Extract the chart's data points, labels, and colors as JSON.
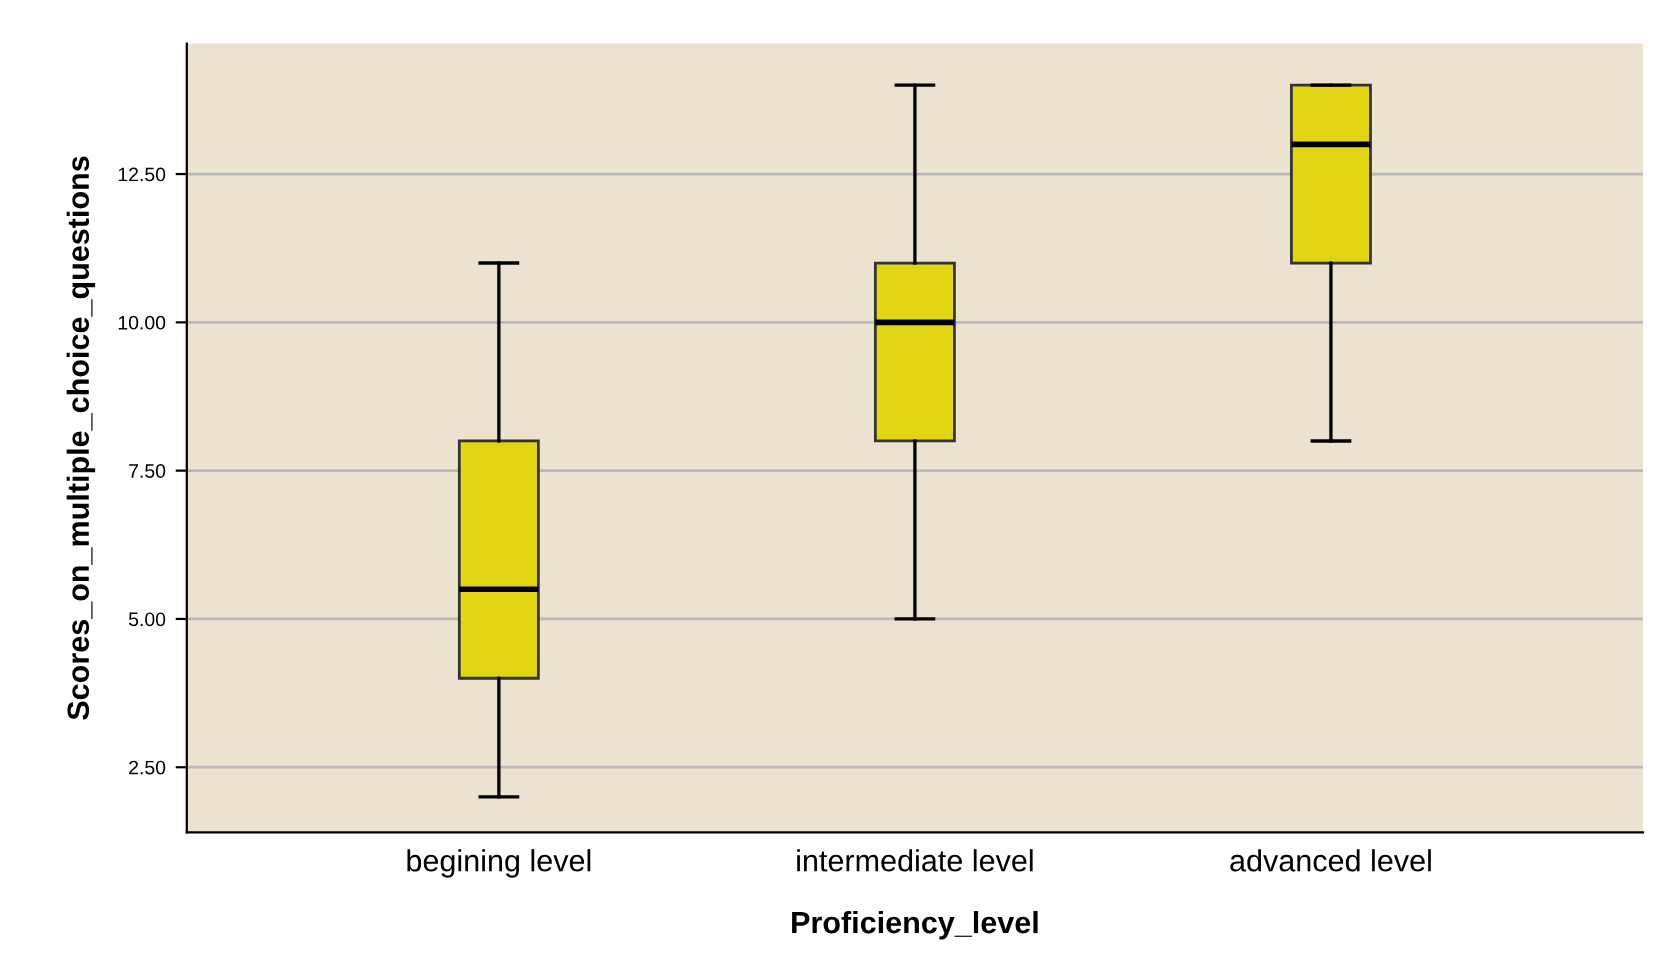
{
  "chart_data": {
    "type": "box",
    "xlabel": "Proficiency_level",
    "ylabel": "Scores_on_multiple_choice_questions",
    "categories": [
      "begining level",
      "intermediate level",
      "advanced level"
    ],
    "boxes": [
      {
        "low": 2,
        "q1": 4,
        "median": 5.5,
        "q3": 8,
        "high": 11
      },
      {
        "low": 5,
        "q1": 8,
        "median": 10,
        "q3": 11,
        "high": 14
      },
      {
        "low": 8,
        "q1": 11,
        "median": 13,
        "q3": 14,
        "high": 14
      }
    ],
    "color": "#e2d614",
    "ylim": [
      1.4,
      14.7
    ],
    "yticks": [
      {
        "value": 2.5,
        "label": "2.50"
      },
      {
        "value": 5,
        "label": "5.00"
      },
      {
        "value": 7.5,
        "label": "7.50"
      },
      {
        "value": 10,
        "label": "10.00"
      },
      {
        "value": 12.5,
        "label": "12.50"
      }
    ],
    "grid": "y"
  }
}
